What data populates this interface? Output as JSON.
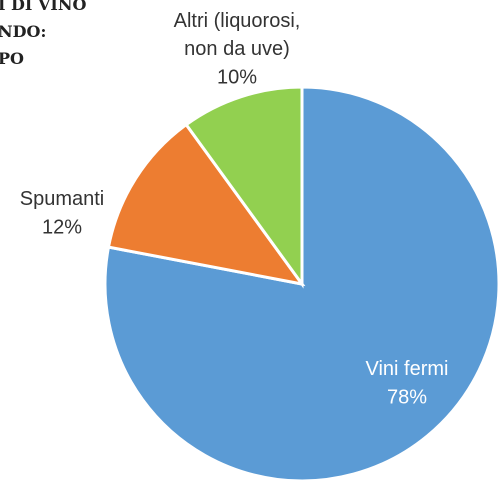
{
  "chart_data": {
    "type": "pie",
    "title_fragments": [
      "I DI VINO",
      "NDO:",
      "PO"
    ],
    "categories": [
      "Vini fermi",
      "Spumanti",
      "Altri (liquorosi, non da uve)"
    ],
    "values": [
      78,
      12,
      10
    ],
    "value_labels": [
      "78%",
      "12%",
      "10%"
    ],
    "colors": [
      "#5b9bd5",
      "#ed7d31",
      "#92d050"
    ]
  }
}
